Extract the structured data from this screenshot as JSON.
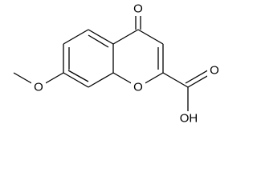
{
  "atoms": {
    "ketone_oxygen": "O",
    "methoxy_oxygen": "O",
    "ring_oxygen": "O",
    "carbonyl_oxygen": "O",
    "hydroxyl": "OH"
  }
}
